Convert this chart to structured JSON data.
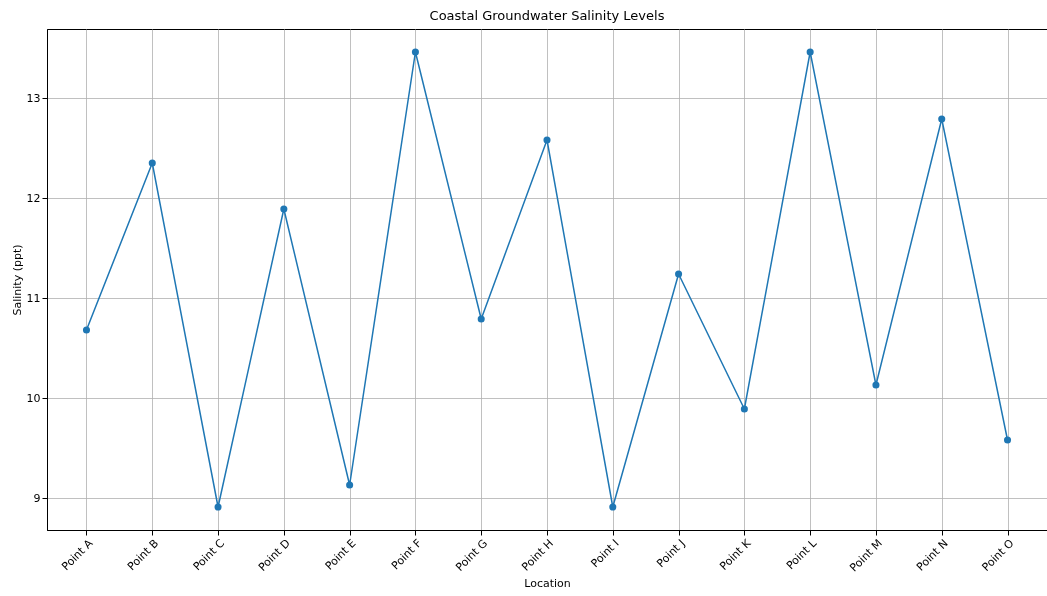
{
  "chart_data": {
    "type": "line",
    "title": "Coastal Groundwater Salinity Levels",
    "xlabel": "Location",
    "ylabel": "Salinity (ppt)",
    "categories": [
      "Point A",
      "Point B",
      "Point C",
      "Point D",
      "Point E",
      "Point F",
      "Point G",
      "Point H",
      "Point I",
      "Point J",
      "Point K",
      "Point L",
      "Point M",
      "Point N",
      "Point O"
    ],
    "series": [
      {
        "color": "#1f77b4",
        "values": [
          10.68,
          12.35,
          8.91,
          11.89,
          9.13,
          13.46,
          10.79,
          12.58,
          8.91,
          11.24,
          9.89,
          13.46,
          10.13,
          12.79,
          9.58
        ]
      }
    ],
    "ylim": [
      8.68,
      13.69
    ],
    "yticks": [
      9,
      10,
      11,
      12,
      13
    ],
    "grid": true,
    "marker": "circle",
    "line_style": "solid"
  }
}
